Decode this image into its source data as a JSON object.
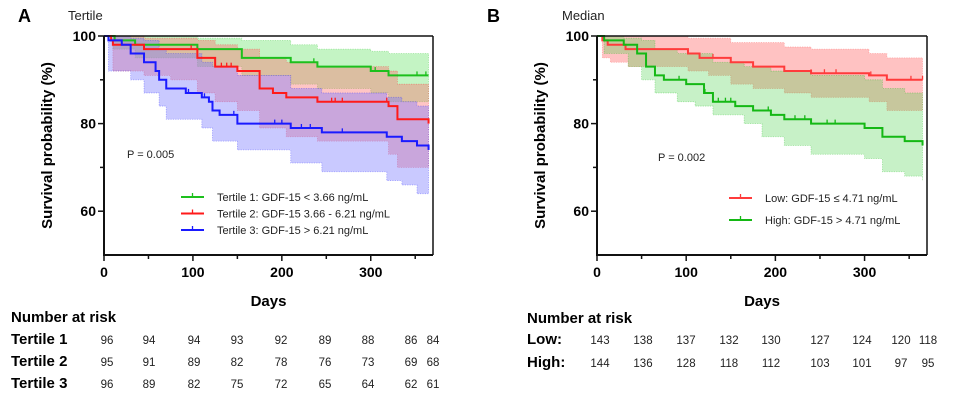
{
  "chart_data": [
    {
      "type": "line",
      "panel": "A",
      "subtitle": "Tertile",
      "title": "",
      "xlabel": "Days",
      "ylabel": "Survival probability (%)",
      "xlim": [
        0,
        370
      ],
      "ylim": [
        50,
        100
      ],
      "xticks": [
        0,
        100,
        200,
        300
      ],
      "xminor": [
        50,
        150,
        250,
        350
      ],
      "yticks": [
        60,
        80,
        100
      ],
      "yminor": [
        70,
        90
      ],
      "p_value": "P = 0.005",
      "legend_position": "bottom-right",
      "series": [
        {
          "name": "Tertile 1: GDF-15 < 3.66 ng/mL",
          "color": "#1dc01d",
          "band": "rgba(60,220,60,0.30)",
          "steps": [
            [
              0,
              100
            ],
            [
              12,
              99
            ],
            [
              35,
              98
            ],
            [
              105,
              97
            ],
            [
              155,
              95
            ],
            [
              210,
              94
            ],
            [
              240,
              93
            ],
            [
              300,
              92
            ],
            [
              320,
              91
            ],
            [
              365,
              91
            ]
          ],
          "lower": [
            [
              0,
              100
            ],
            [
              10,
              97
            ],
            [
              35,
              95
            ],
            [
              105,
              93
            ],
            [
              155,
              91
            ],
            [
              210,
              89
            ],
            [
              240,
              88
            ],
            [
              300,
              87
            ],
            [
              320,
              85
            ],
            [
              365,
              85
            ]
          ],
          "upper": [
            [
              0,
              100
            ],
            [
              35,
              100
            ],
            [
              105,
              99.5
            ],
            [
              155,
              99
            ],
            [
              210,
              98
            ],
            [
              240,
              97
            ],
            [
              300,
              96.5
            ],
            [
              320,
              96
            ],
            [
              365,
              96
            ]
          ],
          "censor_days": [
            236,
            305,
            352,
            362
          ]
        },
        {
          "name": "Tertile 2: GDF-15 3.66 - 6.21 ng/mL",
          "color": "#ff1a1a",
          "band": "rgba(255,110,110,0.40)",
          "steps": [
            [
              0,
              100
            ],
            [
              8,
              99
            ],
            [
              10,
              98
            ],
            [
              45,
              97
            ],
            [
              105,
              95
            ],
            [
              125,
              93
            ],
            [
              150,
              92
            ],
            [
              175,
              88
            ],
            [
              190,
              87
            ],
            [
              205,
              86
            ],
            [
              240,
              85
            ],
            [
              320,
              84
            ],
            [
              330,
              81
            ],
            [
              365,
              80
            ]
          ],
          "lower": [
            [
              0,
              100
            ],
            [
              10,
              92
            ],
            [
              45,
              91
            ],
            [
              75,
              90
            ],
            [
              105,
              87
            ],
            [
              125,
              85
            ],
            [
              150,
              83
            ],
            [
              175,
              79
            ],
            [
              205,
              77
            ],
            [
              240,
              76
            ],
            [
              320,
              73
            ],
            [
              330,
              70
            ],
            [
              365,
              70
            ]
          ],
          "upper": [
            [
              0,
              100
            ],
            [
              45,
              99.5
            ],
            [
              105,
              99
            ],
            [
              125,
              98
            ],
            [
              150,
              97
            ],
            [
              175,
              95
            ],
            [
              205,
              94
            ],
            [
              240,
              93
            ],
            [
              320,
              92
            ],
            [
              330,
              89
            ],
            [
              365,
              88
            ]
          ],
          "censor_days": [
            98,
            132,
            138,
            143,
            256,
            260,
            268,
            318
          ]
        },
        {
          "name": "Tertile 3: GDF-15 > 6.21 ng/mL",
          "color": "#1a1aff",
          "band": "rgba(120,120,255,0.40)",
          "steps": [
            [
              0,
              100
            ],
            [
              5,
              99
            ],
            [
              20,
              98
            ],
            [
              30,
              96
            ],
            [
              45,
              94
            ],
            [
              58,
              92
            ],
            [
              62,
              90
            ],
            [
              70,
              88
            ],
            [
              92,
              87
            ],
            [
              110,
              86
            ],
            [
              118,
              85
            ],
            [
              122,
              83
            ],
            [
              130,
              82
            ],
            [
              150,
              80
            ],
            [
              200,
              80
            ],
            [
              210,
              79
            ],
            [
              245,
              78
            ],
            [
              318,
              77
            ],
            [
              335,
              76
            ],
            [
              352,
              75
            ],
            [
              365,
              74
            ]
          ],
          "lower": [
            [
              0,
              100
            ],
            [
              5,
              92
            ],
            [
              30,
              90
            ],
            [
              45,
              87
            ],
            [
              62,
              84
            ],
            [
              70,
              81
            ],
            [
              110,
              79
            ],
            [
              122,
              76
            ],
            [
              150,
              74
            ],
            [
              210,
              71
            ],
            [
              245,
              69
            ],
            [
              318,
              67
            ],
            [
              335,
              66
            ],
            [
              352,
              64
            ],
            [
              365,
              64
            ]
          ],
          "upper": [
            [
              0,
              100
            ],
            [
              30,
              99.5
            ],
            [
              45,
              99
            ],
            [
              62,
              97
            ],
            [
              70,
              96
            ],
            [
              110,
              94
            ],
            [
              122,
              93
            ],
            [
              150,
              91
            ],
            [
              210,
              88
            ],
            [
              245,
              87
            ],
            [
              318,
              86
            ],
            [
              335,
              85
            ],
            [
              352,
              84
            ],
            [
              365,
              84
            ]
          ],
          "censor_days": [
            95,
            113,
            146,
            192,
            200,
            222,
            232,
            268,
            365
          ]
        }
      ],
      "risk_table": {
        "title": "Number at risk",
        "timepoints": [
          0,
          50,
          100,
          150,
          200,
          250,
          300,
          350,
          365
        ],
        "rows": [
          {
            "label": "Tertile 1",
            "values": [
              96,
              94,
              94,
              93,
              92,
              89,
              88,
              86,
              84
            ]
          },
          {
            "label": "Tertile 2",
            "values": [
              95,
              91,
              89,
              82,
              78,
              76,
              73,
              69,
              68
            ]
          },
          {
            "label": "Tertile 3",
            "values": [
              96,
              89,
              82,
              75,
              72,
              65,
              64,
              62,
              61
            ]
          }
        ]
      }
    },
    {
      "type": "line",
      "panel": "B",
      "subtitle": "Median",
      "title": "",
      "xlabel": "Days",
      "ylabel": "Survival probability (%)",
      "xlim": [
        0,
        370
      ],
      "ylim": [
        50,
        100
      ],
      "xticks": [
        0,
        100,
        200,
        300
      ],
      "xminor": [
        50,
        150,
        250,
        350
      ],
      "yticks": [
        60,
        80,
        100
      ],
      "yminor": [
        70,
        90
      ],
      "p_value": "P = 0.002",
      "legend_position": "bottom-right",
      "series": [
        {
          "name": "Low: GDF-15 ≤ 4.71 ng/mL",
          "color": "#ff3b3b",
          "band": "rgba(255,110,110,0.42)",
          "steps": [
            [
              0,
              100
            ],
            [
              6,
              99
            ],
            [
              12,
              98
            ],
            [
              32,
              97
            ],
            [
              102,
              96
            ],
            [
              115,
              95
            ],
            [
              150,
              94
            ],
            [
              175,
              93
            ],
            [
              210,
              92
            ],
            [
              240,
              91.5
            ],
            [
              305,
              91
            ],
            [
              325,
              90
            ],
            [
              365,
              90
            ]
          ],
          "lower": [
            [
              0,
              100
            ],
            [
              6,
              95
            ],
            [
              15,
              94
            ],
            [
              35,
              93
            ],
            [
              102,
              92
            ],
            [
              125,
              91
            ],
            [
              150,
              89
            ],
            [
              175,
              88
            ],
            [
              210,
              87
            ],
            [
              240,
              86
            ],
            [
              305,
              85
            ],
            [
              325,
              83
            ],
            [
              365,
              83
            ]
          ],
          "upper": [
            [
              0,
              100
            ],
            [
              102,
              99.5
            ],
            [
              150,
              98.5
            ],
            [
              210,
              97.5
            ],
            [
              240,
              97
            ],
            [
              305,
              96
            ],
            [
              325,
              95
            ],
            [
              365,
              94
            ]
          ],
          "censor_days": [
            130,
            240,
            255,
            268,
            307,
            352,
            365
          ]
        },
        {
          "name": "High: GDF-15 > 4.71 ng/mL",
          "color": "#14b814",
          "band": "rgba(80,210,80,0.32)",
          "steps": [
            [
              0,
              100
            ],
            [
              8,
              99
            ],
            [
              30,
              98
            ],
            [
              45,
              96
            ],
            [
              55,
              93
            ],
            [
              65,
              91
            ],
            [
              75,
              90
            ],
            [
              100,
              89
            ],
            [
              120,
              87
            ],
            [
              130,
              85
            ],
            [
              155,
              84
            ],
            [
              175,
              83
            ],
            [
              195,
              82
            ],
            [
              210,
              81
            ],
            [
              240,
              80
            ],
            [
              300,
              79
            ],
            [
              320,
              77
            ],
            [
              345,
              76
            ],
            [
              365,
              75
            ]
          ],
          "lower": [
            [
              0,
              100
            ],
            [
              8,
              96
            ],
            [
              35,
              93
            ],
            [
              50,
              90
            ],
            [
              65,
              87
            ],
            [
              90,
              85
            ],
            [
              110,
              84
            ],
            [
              130,
              82
            ],
            [
              165,
              80
            ],
            [
              185,
              77
            ],
            [
              210,
              75
            ],
            [
              240,
              73
            ],
            [
              300,
              72
            ],
            [
              320,
              69
            ],
            [
              345,
              68
            ],
            [
              365,
              67
            ]
          ],
          "upper": [
            [
              0,
              100
            ],
            [
              30,
              99.5
            ],
            [
              50,
              99
            ],
            [
              65,
              97
            ],
            [
              90,
              96
            ],
            [
              130,
              94
            ],
            [
              165,
              93
            ],
            [
              195,
              92
            ],
            [
              240,
              91
            ],
            [
              300,
              90
            ],
            [
              320,
              88
            ],
            [
              345,
              87
            ],
            [
              365,
              86
            ]
          ],
          "censor_days": [
            92,
            121,
            136,
            144,
            150,
            192,
            222,
            233,
            258,
            267
          ]
        }
      ],
      "risk_table": {
        "title": "Number at risk",
        "timepoints": [
          0,
          50,
          100,
          150,
          200,
          250,
          300,
          350,
          365
        ],
        "rows": [
          {
            "label": "Low:",
            "values": [
              143,
              138,
              137,
              132,
              130,
              127,
              124,
              120,
              118
            ]
          },
          {
            "label": "High:",
            "values": [
              144,
              136,
              128,
              118,
              112,
              103,
              101,
              97,
              95
            ]
          }
        ]
      }
    }
  ]
}
